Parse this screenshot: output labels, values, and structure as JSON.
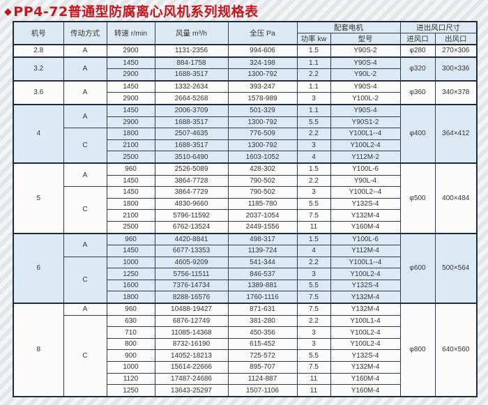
{
  "title": "PP4-72普通型防腐离心风机系列规格表",
  "title_icon": "diamond-icon",
  "colors": {
    "title": "#c4161c",
    "row_blue": "#dceaf6",
    "row_white": "#fafafa",
    "header": "#dde9f3",
    "border": "#2c3a4a"
  },
  "header": {
    "no": "机号",
    "drive": "传动方式",
    "speed": "转速 r/min",
    "flow": "风量 m³/h",
    "pressure": "全压 Pa",
    "motor": "配套电机",
    "power": "功率 kw",
    "model": "型号",
    "port": "进出风口尺寸",
    "inlet": "进风口",
    "outlet": "出风口"
  },
  "groups": [
    {
      "no": "2.8",
      "shade": "white",
      "inlet": "φ280",
      "outlet": "270×306",
      "drives": [
        {
          "type": "A",
          "rows": [
            [
              "2900",
              "1131-2356",
              "994-606",
              "1.5",
              "Y90S-2"
            ]
          ]
        }
      ]
    },
    {
      "no": "3.2",
      "shade": "blue",
      "inlet": "φ320",
      "outlet": "300×336",
      "drives": [
        {
          "type": "A",
          "rows": [
            [
              "1450",
              "884-1758",
              "324-198",
              "1.1",
              "Y90S-4"
            ],
            [
              "2900",
              "1688-3517",
              "1300-792",
              "2.2",
              "Y90L-2"
            ]
          ]
        }
      ]
    },
    {
      "no": "3.6",
      "shade": "white",
      "inlet": "φ360",
      "outlet": "340×378",
      "drives": [
        {
          "type": "A",
          "rows": [
            [
              "1450",
              "1332-2634",
              "393-247",
              "1.1",
              "Y90S-4"
            ],
            [
              "2900",
              "2664-5268",
              "1578-989",
              "3",
              "Y100L-2"
            ]
          ]
        }
      ]
    },
    {
      "no": "4",
      "shade": "blue",
      "inlet": "φ400",
      "outlet": "364×412",
      "drives": [
        {
          "type": "A",
          "rows": [
            [
              "1450",
              "2006-3709",
              "501-329",
              "1.1",
              "Y90S-4"
            ],
            [
              "2900",
              "1688-3517",
              "1300-792",
              "5.5",
              "Y90S1-2"
            ]
          ]
        },
        {
          "type": "C",
          "rows": [
            [
              "1800",
              "2507-4635",
              "776-509",
              "2.2",
              "Y100L1--4"
            ],
            [
              "2100",
              "1688-3517",
              "1300-792",
              "3",
              "Y100L2-4"
            ],
            [
              "2500",
              "3510-6490",
              "1603-1052",
              "4",
              "Y112M-2"
            ]
          ]
        }
      ]
    },
    {
      "no": "5",
      "shade": "white",
      "inlet": "φ500",
      "outlet": "400×484",
      "drives": [
        {
          "type": "A",
          "rows": [
            [
              "960",
              "2526-5089",
              "428-302",
              "1.5",
              "Y100L-6"
            ],
            [
              "1450",
              "3864-7728",
              "790-502",
              "2.2",
              "Y90L-4"
            ]
          ]
        },
        {
          "type": "C",
          "rows": [
            [
              "1450",
              "3864-7729",
              "790-502",
              "3",
              "Y100L2--4"
            ],
            [
              "1800",
              "4830-9660",
              "1185-780",
              "5.5",
              "Y132S-4"
            ],
            [
              "2100",
              "5796-11592",
              "2037-1054",
              "7.5",
              "Y132M-4"
            ],
            [
              "2500",
              "6762-13524",
              "2449-1556",
              "11",
              "Y160M-4"
            ]
          ]
        }
      ]
    },
    {
      "no": "6",
      "shade": "blue",
      "inlet": "φ600",
      "outlet": "500×564",
      "drives": [
        {
          "type": "A",
          "rows": [
            [
              "960",
              "4420-8841",
              "498-317",
              "1.5",
              "Y100L-6"
            ],
            [
              "1450",
              "6677-13353",
              "1139-724",
              "4",
              "Y112M-4"
            ]
          ]
        },
        {
          "type": "C",
          "rows": [
            [
              "1000",
              "4605-9209",
              "541-344",
              "2.2",
              "Y100L1--4"
            ],
            [
              "1250",
              "5756-11511",
              "846-537",
              "3",
              "Y100L2-4"
            ],
            [
              "1600",
              "7376-14734",
              "1389-881",
              "5.5",
              "Y132S-4"
            ],
            [
              "1800",
              "8288-16576",
              "1760-1116",
              "7.5",
              "Y132M-4"
            ]
          ]
        }
      ]
    },
    {
      "no": "8",
      "shade": "white",
      "inlet": "φ800",
      "outlet": "640×560",
      "drives": [
        {
          "type": "A",
          "rows": [
            [
              "960",
              "10488-19427",
              "871-631",
              "7.5",
              "Y132M-4"
            ]
          ]
        },
        {
          "type": "C",
          "rows": [
            [
              "630",
              "6876-12749",
              "381-280",
              "2.2",
              "Y100L1-4"
            ],
            [
              "710",
              "11085-14368",
              "450-356",
              "3",
              "Y100L2-4"
            ],
            [
              "800",
              "8732-16190",
              "615-452",
              "3",
              "Y100L2-4"
            ],
            [
              "900",
              "14052-18213",
              "725-572",
              "5.5",
              "Y132S-4"
            ],
            [
              "1000",
              "15614-22666",
              "895-707",
              "7.5",
              "Y132M-4"
            ],
            [
              "1120",
              "17487-24686",
              "1124-887",
              "11",
              "Y160M-4"
            ],
            [
              "1250",
              "13643-25297",
              "1507-1106",
              "11",
              "Y160M-4"
            ]
          ]
        }
      ]
    }
  ]
}
